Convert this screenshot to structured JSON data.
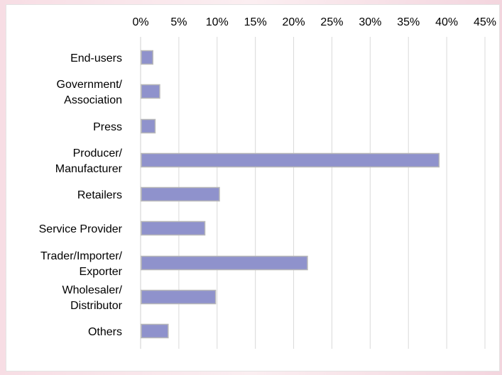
{
  "chart_data": {
    "type": "bar",
    "orientation": "horizontal",
    "title": "",
    "xlabel": "",
    "ylabel": "",
    "categories": [
      [
        "End-users"
      ],
      [
        "Government/",
        "Association"
      ],
      [
        "Press"
      ],
      [
        "Producer/",
        "Manufacturer"
      ],
      [
        "Retailers"
      ],
      [
        "Service Provider"
      ],
      [
        "Trader/Importer/",
        "Exporter"
      ],
      [
        "Wholesaler/",
        "Distributor"
      ],
      [
        "Others"
      ]
    ],
    "values": [
      1.6,
      2.5,
      1.9,
      39.0,
      10.3,
      8.4,
      21.8,
      9.8,
      3.6
    ],
    "xlim": [
      0,
      45
    ],
    "xticks": [
      0,
      5,
      10,
      15,
      20,
      25,
      30,
      35,
      40,
      45
    ],
    "xtick_labels": [
      "0%",
      "5%",
      "10%",
      "15%",
      "20%",
      "25%",
      "30%",
      "35%",
      "40%",
      "45%"
    ],
    "x_axis_position": "top",
    "grid": true,
    "legend": "none",
    "bar_color": "#8f92cc",
    "bar_border_color": "#b8b8b8"
  }
}
